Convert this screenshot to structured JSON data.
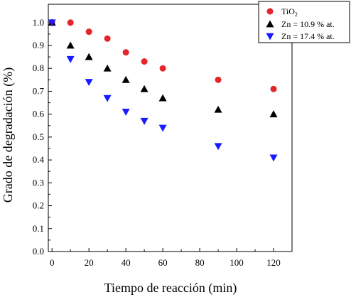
{
  "chart_data": {
    "type": "scatter",
    "xlabel": "Tiempo de reacción (min)",
    "ylabel": "Grado de degradación (%)",
    "xlim": [
      -2,
      130
    ],
    "ylim": [
      0.0,
      1.08
    ],
    "xticks": [
      0,
      20,
      40,
      60,
      80,
      100,
      120
    ],
    "yticks": [
      0.0,
      0.1,
      0.2,
      0.3,
      0.4,
      0.5,
      0.6,
      0.7,
      0.8,
      0.9,
      1.0
    ],
    "ytick_labels": [
      "0.0",
      "0.1",
      "0.2",
      "0.3",
      "0.4",
      "0.5",
      "0.6",
      "0.7",
      "0.8",
      "0.9",
      "1.0"
    ],
    "legend_position": "top-right",
    "series": [
      {
        "name": "TiO2",
        "name_main": "TiO",
        "name_sub": "2",
        "marker": "circle",
        "color": "#e3262b",
        "x": [
          0,
          10,
          20,
          30,
          40,
          50,
          60,
          90,
          120
        ],
        "y": [
          1.0,
          1.0,
          0.96,
          0.93,
          0.87,
          0.83,
          0.8,
          0.75,
          0.71
        ]
      },
      {
        "name": "Zn = 10.9 % at.",
        "marker": "triangle-up",
        "color": "#000000",
        "x": [
          0,
          10,
          20,
          30,
          40,
          50,
          60,
          90,
          120
        ],
        "y": [
          1.0,
          0.9,
          0.85,
          0.8,
          0.75,
          0.71,
          0.67,
          0.62,
          0.6
        ]
      },
      {
        "name": "Zn = 17.4 % at.",
        "marker": "triangle-down",
        "color": "#1a1aff",
        "x": [
          0,
          10,
          20,
          30,
          40,
          50,
          60,
          90,
          120
        ],
        "y": [
          1.0,
          0.84,
          0.74,
          0.67,
          0.61,
          0.57,
          0.54,
          0.46,
          0.41
        ]
      }
    ]
  }
}
